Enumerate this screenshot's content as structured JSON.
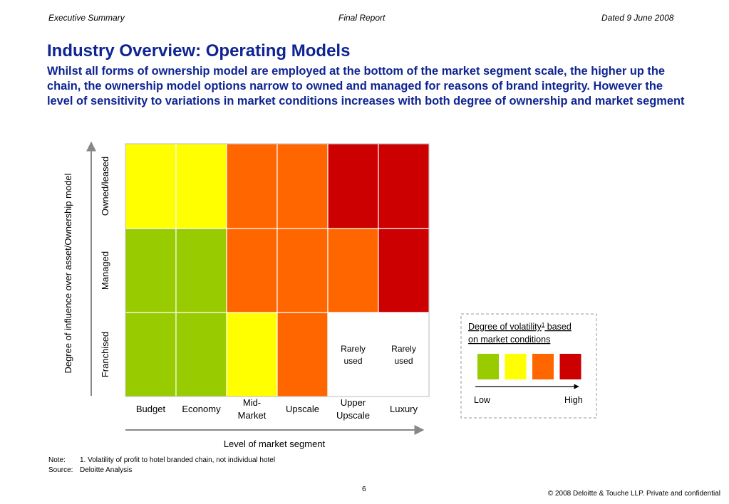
{
  "header": {
    "left": "Executive Summary",
    "center": "Final Report",
    "right": "Dated 9 June 2008"
  },
  "title": "Industry Overview: Operating Models",
  "subtitle": "Whilst all forms of ownership model are employed at the bottom of the market segment scale, the higher up the chain, the ownership model options narrow to owned and managed for reasons of brand integrity. However the level of sensitivity to variations in market conditions increases with both degree of ownership and market segment",
  "colors": {
    "green": "#99cc00",
    "yellow": "#ffff00",
    "orange": "#ff6600",
    "red": "#cc0000",
    "empty": "#ffffff"
  },
  "chart_data": {
    "type": "heatmap",
    "xlabel": "Level of market segment",
    "ylabel": "Degree of influence over asset/Ownership model",
    "columns": [
      {
        "lines": [
          "Budget"
        ]
      },
      {
        "lines": [
          "Economy"
        ]
      },
      {
        "lines": [
          "Mid-",
          "Market"
        ]
      },
      {
        "lines": [
          "Upscale"
        ]
      },
      {
        "lines": [
          "Upper",
          "Upscale"
        ]
      },
      {
        "lines": [
          "Luxury"
        ]
      }
    ],
    "rows": [
      "Owned/leased",
      "Managed",
      "Franchised"
    ],
    "cells": [
      [
        "yellow",
        "yellow",
        "orange",
        "orange",
        "red",
        "red"
      ],
      [
        "green",
        "green",
        "orange",
        "orange",
        "orange",
        "red"
      ],
      [
        "green",
        "green",
        "yellow",
        "orange",
        "empty",
        "empty"
      ]
    ],
    "cell_labels": [
      [
        null,
        null,
        null,
        null,
        null,
        null
      ],
      [
        null,
        null,
        null,
        null,
        null,
        null
      ],
      [
        null,
        null,
        null,
        null,
        [
          "Rarely",
          "used"
        ],
        [
          "Rarely",
          "used"
        ]
      ]
    ],
    "legend": {
      "title_line1": "Degree of volatility",
      "title_sup": "1",
      "title_line1_suffix": " based",
      "title_line2": "on market conditions",
      "scale": [
        "green",
        "yellow",
        "orange",
        "red"
      ],
      "low": "Low",
      "high": "High"
    }
  },
  "notes": {
    "note_key": "Note:",
    "note_text": "1. Volatility of profit to hotel branded chain, not individual hotel",
    "source_key": "Source:",
    "source_text": "Deloitte Analysis"
  },
  "footer": {
    "page": "6",
    "copyright": "© 2008 Deloitte & Touche LLP. Private and confidential"
  }
}
